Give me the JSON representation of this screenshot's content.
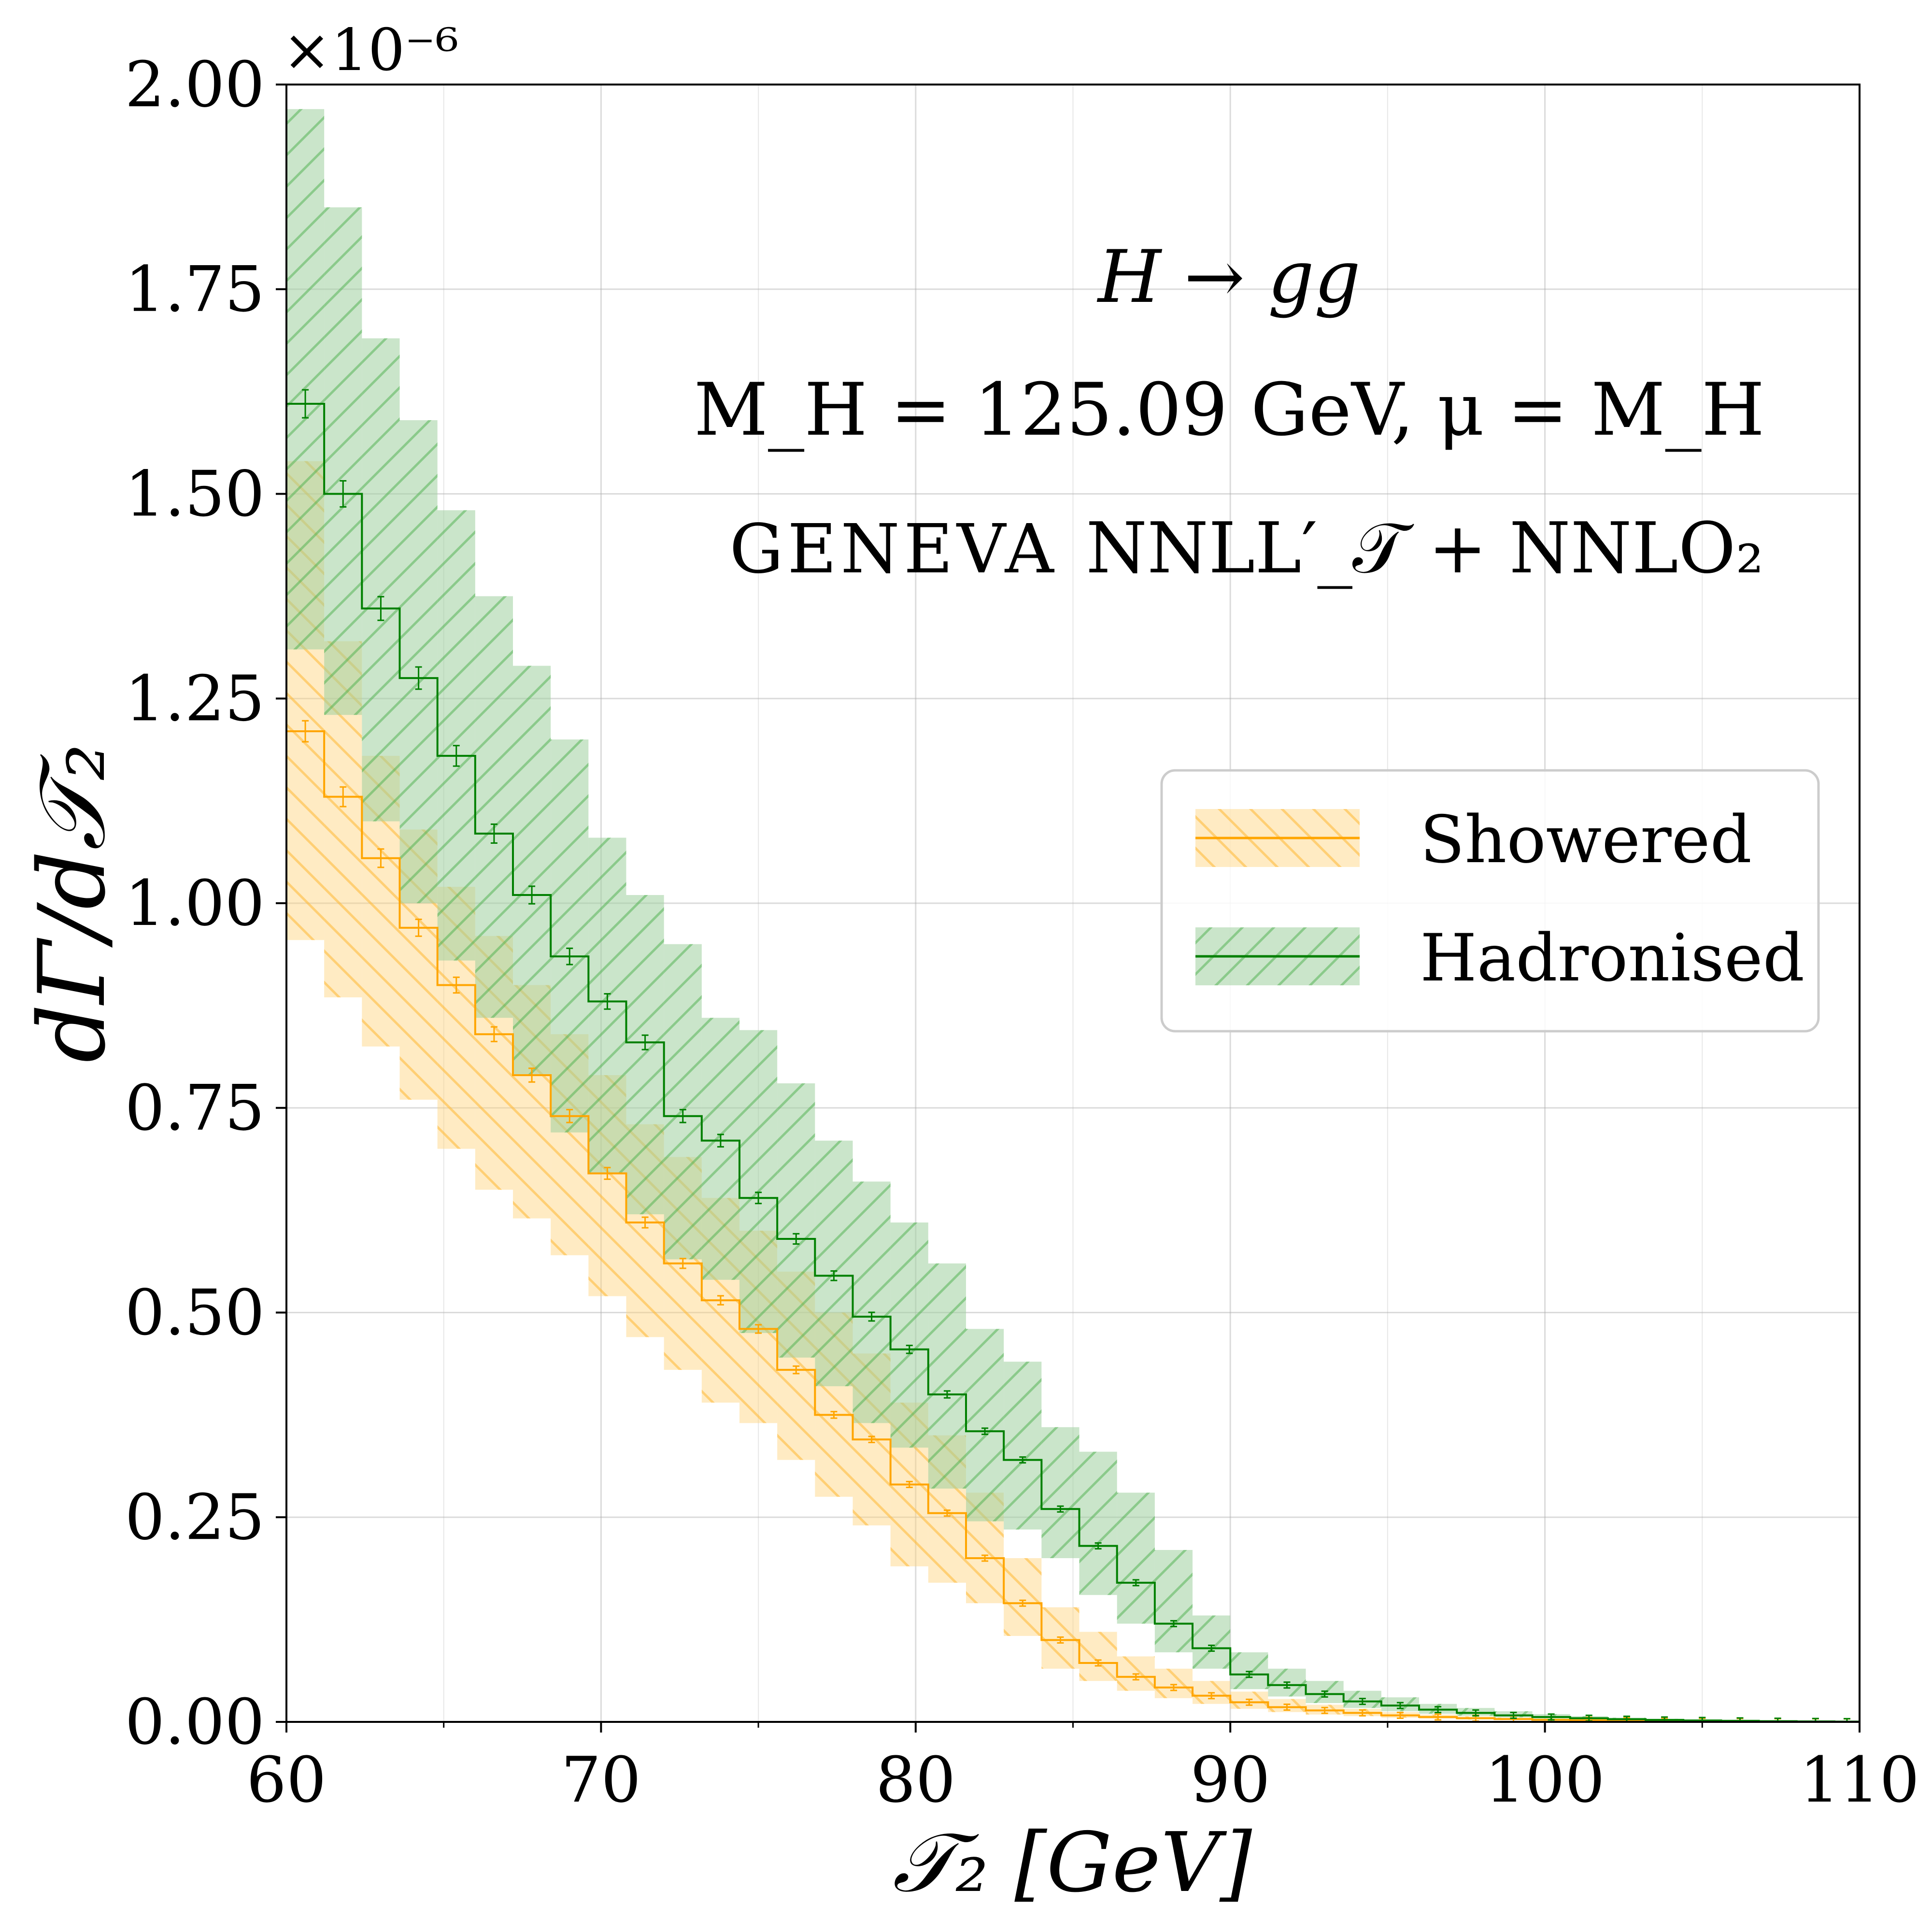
{
  "chart_data": {
    "type": "line",
    "title": "",
    "xlabel": "𝒯₂   [GeV]",
    "ylabel": "dΓ/d𝒯₂",
    "y_scale_label": "×10⁻⁶",
    "xlim": [
      60,
      110
    ],
    "ylim": [
      0,
      2.0
    ],
    "grid": true,
    "x_ticks": [
      60,
      70,
      80,
      90,
      100,
      110
    ],
    "x_tick_labels": [
      "60",
      "70",
      "80",
      "90",
      "100",
      "110"
    ],
    "y_ticks": [
      0,
      0.25,
      0.5,
      0.75,
      1.0,
      1.25,
      1.5,
      1.75,
      2.0
    ],
    "y_tick_labels": [
      "0.00",
      "0.25",
      "0.50",
      "0.75",
      "1.00",
      "1.25",
      "1.50",
      "1.75",
      "2.00"
    ],
    "annotations": {
      "process": "H → gg",
      "parameters": "M_H = 125.09 GeV,  μ = M_H",
      "generator": "GENEVA",
      "accuracy": "NNLL′_𝒯 + NNLO₂"
    },
    "legend_position": "center-right",
    "bin_edges": [
      60,
      61.2,
      62.4,
      63.6,
      64.8,
      66.0,
      67.2,
      68.4,
      69.6,
      70.8,
      72.0,
      73.2,
      74.4,
      75.6,
      76.8,
      78.0,
      79.2,
      80.4,
      81.6,
      82.8,
      84.0,
      85.2,
      86.4,
      87.6,
      88.8,
      90.0,
      91.2,
      92.4,
      93.6,
      94.8,
      96.0,
      97.2,
      98.4,
      99.6,
      100.8,
      102.0,
      103.2,
      104.4,
      105.6,
      106.8,
      108.0,
      109.2,
      110.0
    ],
    "series": [
      {
        "name": "Showered",
        "color": "#ffa500",
        "band_color": "#ffd27a",
        "hatch": "backslash",
        "values": [
          1.21,
          1.13,
          1.055,
          0.97,
          0.9,
          0.84,
          0.79,
          0.74,
          0.67,
          0.61,
          0.56,
          0.515,
          0.48,
          0.43,
          0.375,
          0.345,
          0.29,
          0.255,
          0.2,
          0.145,
          0.1,
          0.072,
          0.055,
          0.042,
          0.032,
          0.024,
          0.018,
          0.014,
          0.011,
          0.008,
          0.006,
          0.0045,
          0.0035,
          0.0026,
          0.002,
          0.0015,
          0.0011,
          0.0008,
          0.0006,
          0.0004,
          0.0003,
          0.0002
        ],
        "band_upper": [
          1.54,
          1.32,
          1.18,
          1.09,
          1.02,
          0.96,
          0.9,
          0.84,
          0.79,
          0.73,
          0.69,
          0.64,
          0.6,
          0.55,
          0.5,
          0.45,
          0.39,
          0.35,
          0.28,
          0.2,
          0.14,
          0.11,
          0.08,
          0.065,
          0.05,
          0.037,
          0.028,
          0.021,
          0.016,
          0.012,
          0.009,
          0.0068,
          0.0052,
          0.0039,
          0.003,
          0.0022,
          0.0016,
          0.0012,
          0.0009,
          0.0006,
          0.00045,
          0.0003
        ],
        "band_lower": [
          0.955,
          0.885,
          0.825,
          0.76,
          0.7,
          0.65,
          0.615,
          0.57,
          0.52,
          0.47,
          0.43,
          0.39,
          0.365,
          0.32,
          0.275,
          0.24,
          0.19,
          0.17,
          0.145,
          0.105,
          0.065,
          0.05,
          0.038,
          0.029,
          0.022,
          0.016,
          0.012,
          0.009,
          0.007,
          0.005,
          0.0038,
          0.0029,
          0.0022,
          0.0017,
          0.0013,
          0.001,
          0.0007,
          0.0005,
          0.0004,
          0.0003,
          0.0002,
          0.0001
        ]
      },
      {
        "name": "Hadronised",
        "color": "#008000",
        "band_color": "#9fd09f",
        "hatch": "slash",
        "values": [
          1.61,
          1.5,
          1.36,
          1.275,
          1.18,
          1.085,
          1.01,
          0.935,
          0.88,
          0.83,
          0.74,
          0.71,
          0.64,
          0.59,
          0.545,
          0.495,
          0.455,
          0.4,
          0.355,
          0.32,
          0.26,
          0.215,
          0.17,
          0.12,
          0.09,
          0.058,
          0.045,
          0.034,
          0.025,
          0.02,
          0.015,
          0.011,
          0.008,
          0.006,
          0.0045,
          0.0033,
          0.0024,
          0.0018,
          0.0013,
          0.0009,
          0.0006,
          0.0004
        ],
        "band_upper": [
          1.97,
          1.85,
          1.69,
          1.59,
          1.48,
          1.375,
          1.29,
          1.2,
          1.08,
          1.01,
          0.95,
          0.86,
          0.845,
          0.78,
          0.71,
          0.66,
          0.61,
          0.56,
          0.48,
          0.44,
          0.36,
          0.33,
          0.28,
          0.21,
          0.13,
          0.085,
          0.065,
          0.05,
          0.038,
          0.03,
          0.022,
          0.017,
          0.013,
          0.0095,
          0.007,
          0.0051,
          0.0037,
          0.0027,
          0.0019,
          0.0014,
          0.001,
          0.0007
        ],
        "band_lower": [
          1.31,
          1.23,
          1.1,
          1.0,
          0.93,
          0.86,
          0.79,
          0.72,
          0.67,
          0.62,
          0.565,
          0.54,
          0.475,
          0.445,
          0.41,
          0.365,
          0.335,
          0.285,
          0.245,
          0.235,
          0.2,
          0.155,
          0.12,
          0.085,
          0.065,
          0.04,
          0.031,
          0.023,
          0.017,
          0.013,
          0.01,
          0.0075,
          0.0055,
          0.004,
          0.003,
          0.0022,
          0.0016,
          0.0012,
          0.0008,
          0.0006,
          0.0004,
          0.0003
        ]
      }
    ]
  }
}
